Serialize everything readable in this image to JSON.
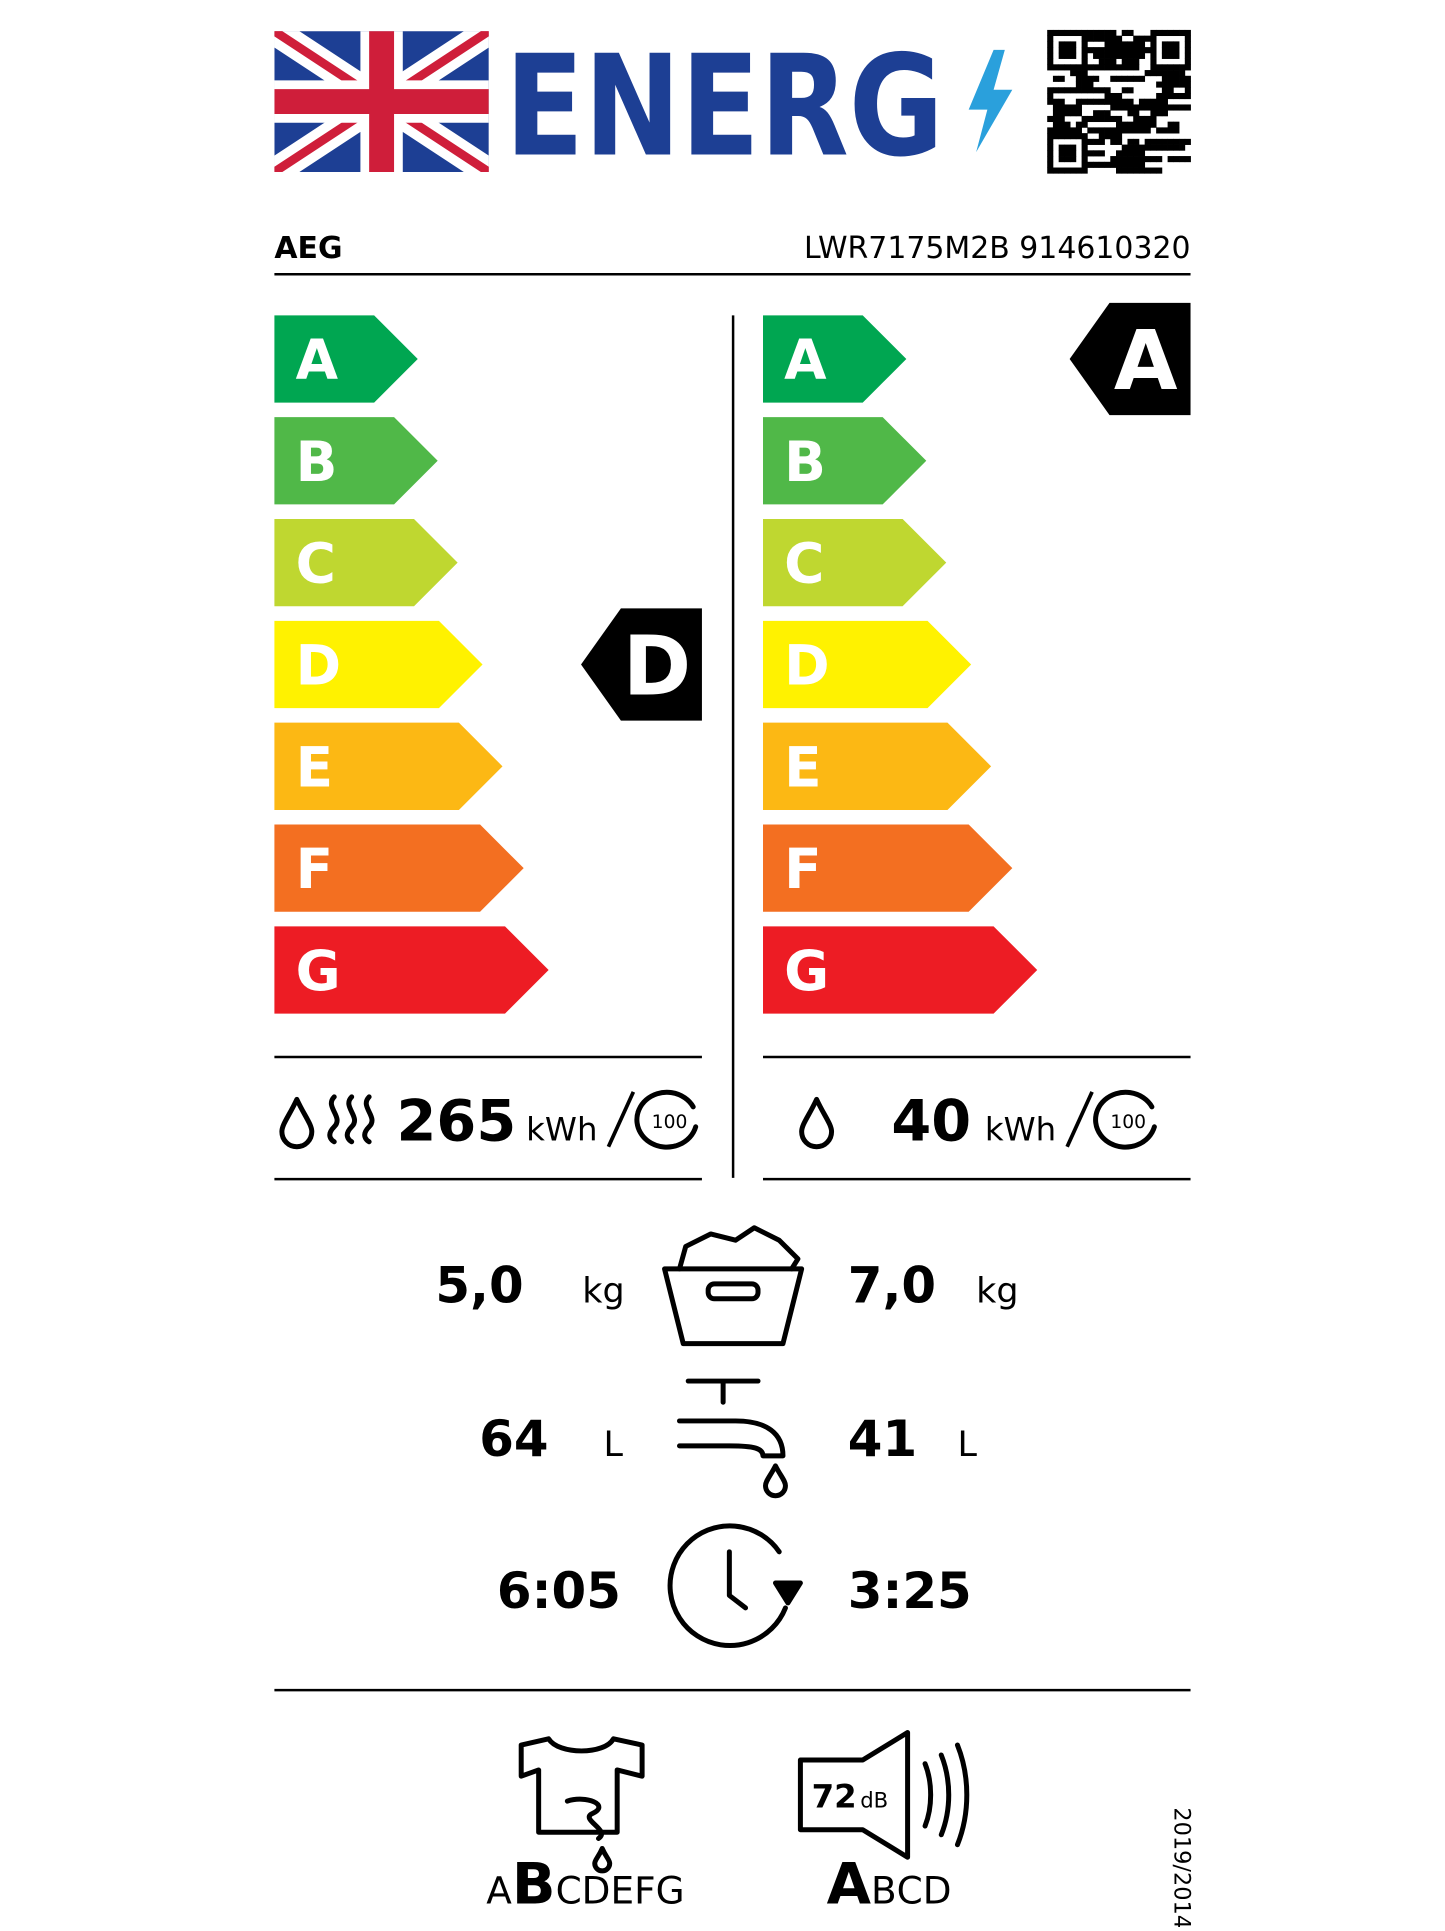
{
  "header": {
    "logo_text": "ENERG",
    "brand": "AEG",
    "model": "LWR7175M2B 914610320"
  },
  "classes": [
    "A",
    "B",
    "C",
    "D",
    "E",
    "F",
    "G"
  ],
  "washing_and_drying": {
    "rating": "D",
    "energy": "265",
    "energy_unit": "kWh",
    "cycles": "100"
  },
  "washing": {
    "rating": "A",
    "energy": "40",
    "energy_unit": "kWh",
    "cycles": "100"
  },
  "capacity": {
    "left": "5,0",
    "left_unit": "kg",
    "right": "7,0",
    "right_unit": "kg"
  },
  "water": {
    "left": "64",
    "left_unit": "L",
    "right": "41",
    "right_unit": "L"
  },
  "duration": {
    "left": "6:05",
    "right": "3:25"
  },
  "spin_class": {
    "letters": [
      "A",
      "B",
      "C",
      "D",
      "E",
      "F",
      "G"
    ],
    "selected": 1
  },
  "noise": {
    "value": "72",
    "unit": "dB",
    "letters": [
      "A",
      "B",
      "C",
      "D"
    ],
    "selected": 0
  },
  "regulation": "2019/2014"
}
